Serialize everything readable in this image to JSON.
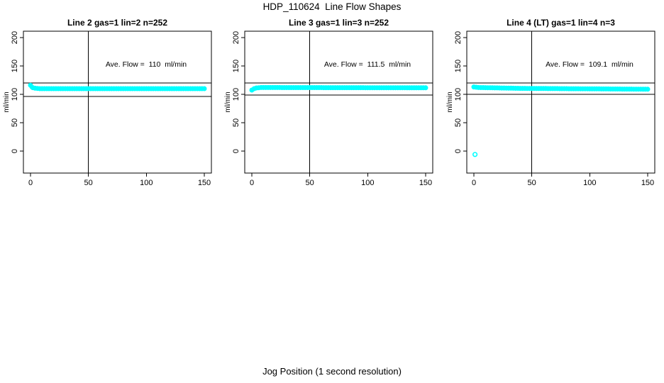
{
  "figure": {
    "title": "HDP_110624  Line Flow Shapes",
    "xlabel": "Jog Position (1 second resolution)",
    "ylabel": "ml/min",
    "background_color": "#ffffff",
    "axis_color": "#000000",
    "point_color": "#00ffff"
  },
  "chart_data": [
    {
      "type": "scatter",
      "title": "Line 2 gas=1 lin=2 n=252",
      "n": 252,
      "annotation": "Ave. Flow =  110  ml/min",
      "ave_flow_ml_min": 110,
      "ylabel": "ml/min",
      "xlim": [
        0,
        150
      ],
      "ylim": [
        0,
        200
      ],
      "x_ticks": [
        0,
        50,
        100,
        150
      ],
      "y_ticks": [
        0,
        50,
        100,
        150,
        200
      ],
      "v_ref_line_x": 50,
      "h_ref_lines_y": [
        96,
        120
      ],
      "flow_band_points": [
        [
          0,
          116
        ],
        [
          1,
          112.5
        ],
        [
          3,
          111
        ],
        [
          8,
          110
        ],
        [
          150,
          110
        ]
      ],
      "outlier_points": []
    },
    {
      "type": "scatter",
      "title": "Line 3 gas=1 lin=3 n=252",
      "n": 252,
      "annotation": "Ave. Flow =  111.5  ml/min",
      "ave_flow_ml_min": 111.5,
      "ylabel": "ml/min",
      "xlim": [
        0,
        150
      ],
      "ylim": [
        0,
        200
      ],
      "x_ticks": [
        0,
        50,
        100,
        150
      ],
      "y_ticks": [
        0,
        50,
        100,
        150,
        200
      ],
      "v_ref_line_x": 50,
      "h_ref_lines_y": [
        99,
        120
      ],
      "flow_band_points": [
        [
          0,
          107.5
        ],
        [
          1,
          109
        ],
        [
          3,
          111
        ],
        [
          8,
          112
        ],
        [
          150,
          111.5
        ]
      ],
      "outlier_points": []
    },
    {
      "type": "scatter",
      "title": "Line 4 (LT) gas=1 lin=4 n=3",
      "n": 3,
      "annotation": "Ave. Flow =  109.1  ml/min",
      "ave_flow_ml_min": 109.1,
      "ylabel": "ml/min",
      "xlim": [
        0,
        150
      ],
      "ylim": [
        0,
        200
      ],
      "x_ticks": [
        0,
        50,
        100,
        150
      ],
      "y_ticks": [
        0,
        50,
        100,
        150,
        200
      ],
      "v_ref_line_x": 50,
      "h_ref_lines_y": [
        100,
        120
      ],
      "flow_band_points": [
        [
          0,
          113
        ],
        [
          4,
          112
        ],
        [
          40,
          110.5
        ],
        [
          150,
          109
        ]
      ],
      "outlier_points": [
        [
          1,
          -6
        ]
      ]
    }
  ]
}
